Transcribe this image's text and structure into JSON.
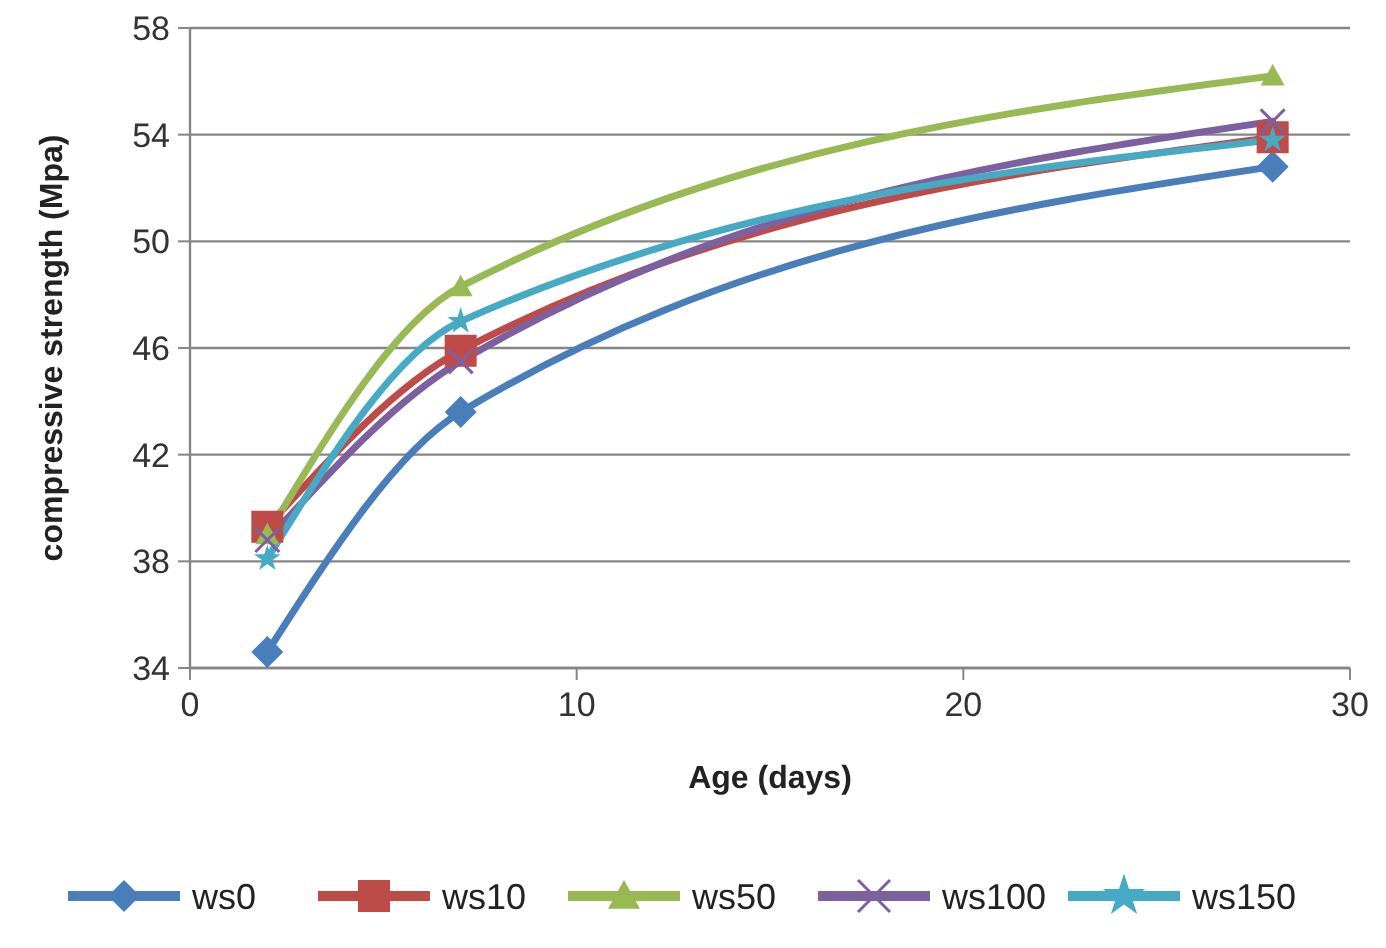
{
  "chart_data": {
    "type": "line",
    "xlabel": "Age (days)",
    "ylabel": "compressive strength (Mpa)",
    "x": [
      2,
      7,
      28
    ],
    "series": [
      {
        "name": "ws0",
        "color": "#4a7ebb",
        "marker": "diamond",
        "values": [
          34.6,
          43.6,
          52.8
        ]
      },
      {
        "name": "ws10",
        "color": "#be4b48",
        "marker": "square",
        "values": [
          39.3,
          45.9,
          53.9
        ]
      },
      {
        "name": "ws50",
        "color": "#98b954",
        "marker": "triangle",
        "values": [
          39.0,
          48.3,
          56.2
        ]
      },
      {
        "name": "ws100",
        "color": "#7d60a0",
        "marker": "cross",
        "values": [
          38.8,
          45.5,
          54.5
        ]
      },
      {
        "name": "ws150",
        "color": "#46aac5",
        "marker": "star",
        "values": [
          38.1,
          47.0,
          53.8
        ]
      }
    ],
    "xlim": [
      0,
      30
    ],
    "xticks": [
      0,
      10,
      20,
      30
    ],
    "ylim": [
      34,
      58
    ],
    "yticks": [
      34,
      38,
      42,
      46,
      50,
      54,
      58
    ],
    "grid": "y",
    "legend": "bottom"
  }
}
